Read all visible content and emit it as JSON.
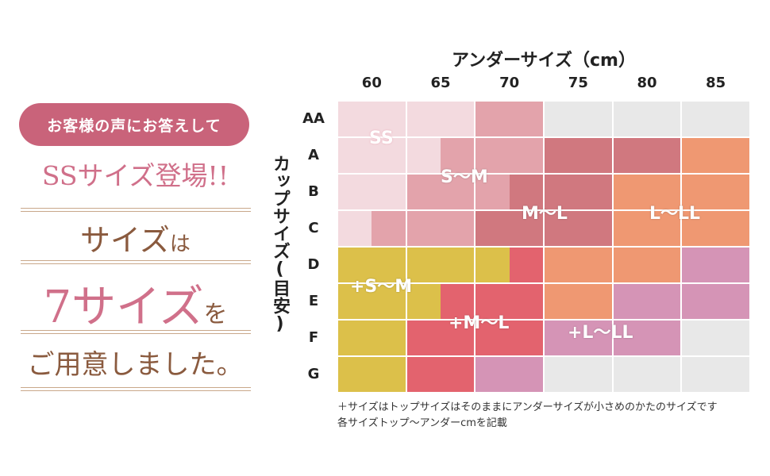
{
  "left": {
    "badge": "お客様の声にお答えして",
    "ss_title": "SSサイズ登場!!",
    "line1_a": "サイズ",
    "line1_b": "は",
    "line2_a": "7サイズ",
    "line2_b": "を",
    "line3": "ご用意しました。"
  },
  "chart": {
    "x_title": "アンダーサイズ（cm）",
    "y_title": "カップサイズ(目安)",
    "columns": [
      "60",
      "65",
      "70",
      "75",
      "80",
      "85"
    ],
    "rows": [
      "AA",
      "A",
      "B",
      "C",
      "D",
      "E",
      "F",
      "G"
    ],
    "size_labels": {
      "ss": "SS",
      "s_m": "S～M",
      "m_l": "M～L",
      "l_ll": "L～LL",
      "plus_s_m": "+S～M",
      "plus_m_l": "+M～L",
      "plus_l_ll": "+L～LL"
    }
  },
  "notes": {
    "line1": "＋サイズはトップサイズはそのままにアンダーサイズが小さめのかたのサイズです",
    "line2": "各サイズトップ～アンダーcmを記載"
  },
  "colors": {
    "ss": "#f3dadf",
    "s_m": "#e3a3ab",
    "m_l": "#d0787f",
    "l_ll": "#ef9872",
    "plus_s_m": "#dcc04a",
    "plus_m_l": "#e3636e",
    "plus_l_ll": "#d594b6",
    "empty": "#e8e8e8"
  }
}
